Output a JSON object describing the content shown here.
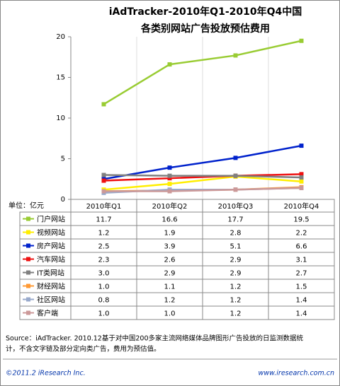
{
  "chart_data": {
    "type": "line",
    "title": [
      "iAdTracker-2010年Q1-2010年Q4中国",
      "各类别网站广告投放预估费用"
    ],
    "y_label": "单位：亿元",
    "categories": [
      "2010年Q1",
      "2010年Q2",
      "2010年Q3",
      "2010年Q4"
    ],
    "ylim": [
      0,
      20
    ],
    "yticks": [
      0,
      5,
      10,
      15,
      20
    ],
    "series": [
      {
        "name": "门户网站",
        "color": "#99cc33",
        "values": [
          11.7,
          16.6,
          17.7,
          19.5
        ],
        "value_labels": [
          "11.7",
          "16.6",
          "17.7",
          "19.5"
        ]
      },
      {
        "name": "视频网站",
        "color": "#ffee00",
        "values": [
          1.2,
          1.9,
          2.8,
          2.2
        ],
        "value_labels": [
          "1.2",
          "1.9",
          "2.8",
          "2.2"
        ]
      },
      {
        "name": "房产网站",
        "color": "#0022cc",
        "values": [
          2.5,
          3.9,
          5.1,
          6.6
        ],
        "value_labels": [
          "2.5",
          "3.9",
          "5.1",
          "6.6"
        ]
      },
      {
        "name": "汽车网站",
        "color": "#ee1111",
        "values": [
          2.3,
          2.6,
          2.9,
          3.1
        ],
        "value_labels": [
          "2.3",
          "2.6",
          "2.9",
          "3.1"
        ]
      },
      {
        "name": "IT类网站",
        "color": "#808080",
        "values": [
          3.0,
          2.9,
          2.9,
          2.7
        ],
        "value_labels": [
          "3.0",
          "2.9",
          "2.9",
          "2.7"
        ]
      },
      {
        "name": "财经网站",
        "color": "#ff9933",
        "values": [
          1.0,
          1.1,
          1.2,
          1.5
        ],
        "value_labels": [
          "1.0",
          "1.1",
          "1.2",
          "1.5"
        ]
      },
      {
        "name": "社区网站",
        "color": "#99aacc",
        "values": [
          0.8,
          1.2,
          1.2,
          1.4
        ],
        "value_labels": [
          "0.8",
          "1.2",
          "1.2",
          "1.4"
        ]
      },
      {
        "name": "客户端",
        "color": "#cc9999",
        "values": [
          1.0,
          1.0,
          1.2,
          1.4
        ],
        "value_labels": [
          "1.0",
          "1.0",
          "1.2",
          "1.4"
        ]
      }
    ],
    "source": [
      "Source：iAdTracker. 2010.12基于对中国200多家主流网络媒体品牌图形广告投放的日监测数据统",
      "计，不含文字链及部分定向类广告，费用为预估值。"
    ],
    "copyright": "©2011.2 iResearch Inc.",
    "website": "www.iresearch.com.cn"
  }
}
